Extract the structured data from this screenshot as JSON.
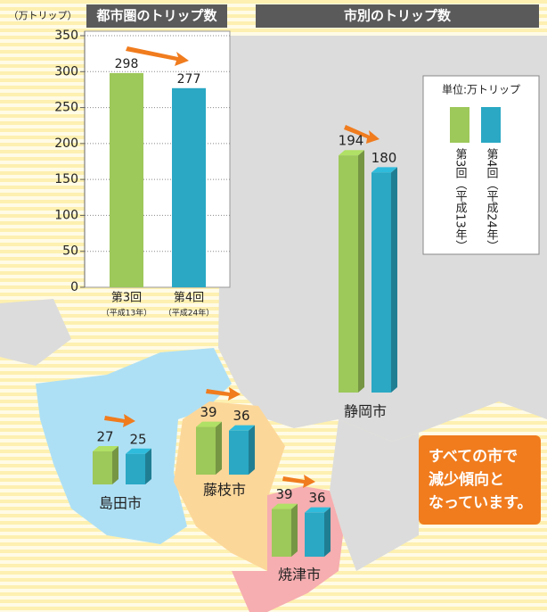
{
  "chart_data": [
    {
      "type": "bar",
      "title": "都市圏のトリップ数",
      "y_label": "（万トリップ）",
      "categories": [
        "第3回",
        "第4回"
      ],
      "category_notes": [
        "（平成13年）",
        "（平成24年）"
      ],
      "values": [
        298,
        277
      ],
      "colors": [
        "#9dc85a",
        "#2aa8c4"
      ],
      "ylim": [
        0,
        350
      ],
      "yticks": [
        0,
        50,
        100,
        150,
        200,
        250,
        300,
        350
      ],
      "grid": true
    },
    {
      "type": "bar3d",
      "title": "市別のトリップ数",
      "unit": "単位:万トリップ",
      "categories": [
        "島田市",
        "藤枝市",
        "焼津市",
        "静岡市"
      ],
      "series": [
        {
          "name": "第3回（平成13年）",
          "color": "#9dc85a",
          "values": [
            27,
            39,
            39,
            194
          ]
        },
        {
          "name": "第4回（平成24年）",
          "color": "#2aa8c4",
          "values": [
            25,
            36,
            36,
            180
          ]
        }
      ],
      "annotation": [
        "すべての市で",
        "減少傾向と",
        "なっています。"
      ]
    }
  ]
}
